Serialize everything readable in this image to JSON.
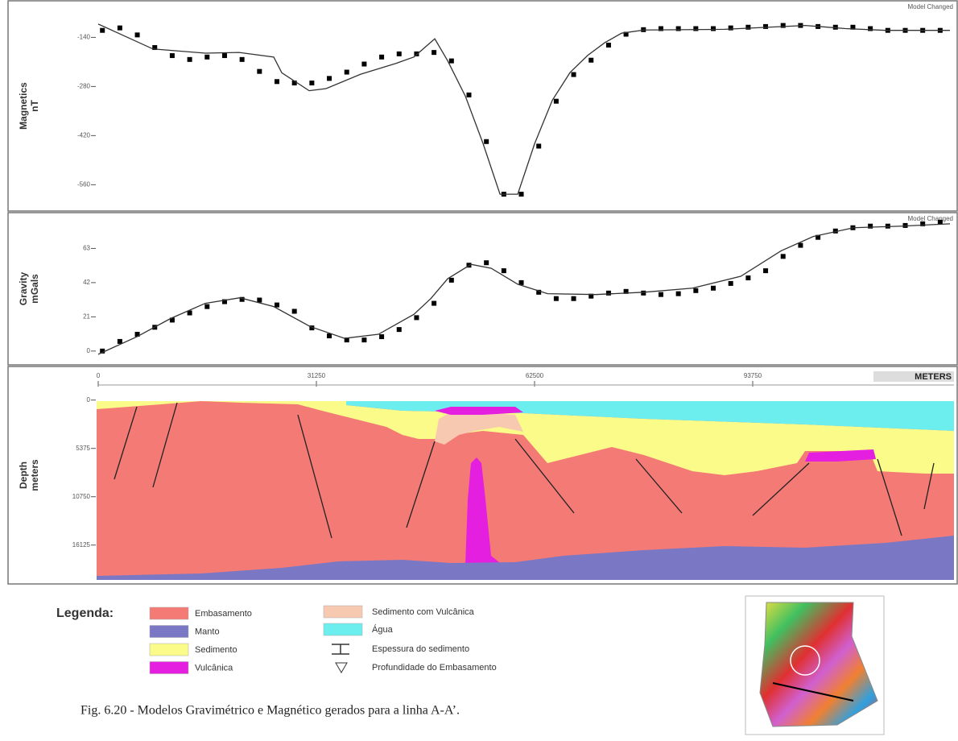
{
  "chart_data": [
    {
      "type": "line",
      "ylabel": [
        "Magnetics",
        "nT"
      ],
      "annotation": "Model Changed",
      "xlim": [
        0,
        122000
      ],
      "ylim": [
        -612,
        -61
      ],
      "yticks": [
        -140,
        -280,
        -420,
        -560
      ],
      "series": [
        {
          "type": "scatter",
          "color": "#000000",
          "x": [
            600,
            3100,
            5600,
            8100,
            10600,
            13100,
            15600,
            18100,
            20600,
            23100,
            25600,
            28100,
            30600,
            33100,
            35600,
            38100,
            40600,
            43100,
            45600,
            48100,
            50600,
            53100,
            55600,
            58100,
            60600,
            63100,
            65600,
            68100,
            70600,
            73100,
            75600,
            78100,
            80600,
            83100,
            85600,
            88100,
            90600,
            93100,
            95600,
            98100,
            100600,
            103100,
            105600,
            108100,
            110600,
            113100,
            115600,
            118100,
            120600
          ],
          "values": [
            -120,
            -113,
            -133,
            -169,
            -192,
            -203,
            -196,
            -192,
            -203,
            -237,
            -266,
            -270,
            -270,
            -257,
            -239,
            -216,
            -196,
            -187,
            -187,
            -183,
            -207,
            -304,
            -437,
            -587,
            -587,
            -450,
            -322,
            -246,
            -205,
            -162,
            -131,
            -118,
            -115,
            -115,
            -115,
            -115,
            -113,
            -111,
            -109,
            -106,
            -106,
            -109,
            -111,
            -111,
            -115,
            -120,
            -120,
            -120,
            -120
          ]
        },
        {
          "type": "line",
          "color": "#333333",
          "x": [
            0,
            2880,
            7840,
            15340,
            20180,
            25140,
            26300,
            30220,
            32640,
            37600,
            42680,
            45210,
            48210,
            50060,
            52600,
            55130,
            57550,
            60090,
            62510,
            65050,
            67590,
            70130,
            72560,
            74970,
            78200,
            89730,
            101270,
            107040,
            112800,
            122000
          ],
          "values": [
            -102,
            -128,
            -173,
            -185,
            -183,
            -196,
            -241,
            -292,
            -286,
            -245,
            -214,
            -196,
            -144,
            -207,
            -308,
            -443,
            -587,
            -587,
            -443,
            -319,
            -240,
            -191,
            -155,
            -128,
            -119,
            -117,
            -106,
            -115,
            -120,
            -120
          ]
        }
      ]
    },
    {
      "type": "line",
      "ylabel": [
        "Gravity",
        "mGals"
      ],
      "annotation": "Model Changed",
      "xlim": [
        0,
        122000
      ],
      "ylim": [
        -7,
        82
      ],
      "yticks": [
        0,
        21,
        42,
        63
      ],
      "series": [
        {
          "type": "scatter",
          "color": "#000000",
          "x": [
            600,
            3100,
            5600,
            8100,
            10600,
            13100,
            15600,
            18100,
            20600,
            23100,
            25600,
            28100,
            30600,
            33100,
            35600,
            38100,
            40600,
            43100,
            45600,
            48100,
            50600,
            53100,
            55600,
            58100,
            60600,
            63100,
            65600,
            68100,
            70600,
            73100,
            75600,
            78100,
            80600,
            83100,
            85600,
            88100,
            90600,
            93100,
            95600,
            98100,
            100600,
            103100,
            105600,
            108100,
            110600,
            113100,
            115600,
            118100,
            120600
          ],
          "values": [
            0,
            5.9,
            10.3,
            14.6,
            19.0,
            23.4,
            27.3,
            30.3,
            31.7,
            31.3,
            28.3,
            24.4,
            14.2,
            9.3,
            6.8,
            6.8,
            8.8,
            13.2,
            20.5,
            29.3,
            43.5,
            52.7,
            54.2,
            49.3,
            42.0,
            36.1,
            32.2,
            32.2,
            33.7,
            35.6,
            36.6,
            35.6,
            34.7,
            35.2,
            37.1,
            38.6,
            41.5,
            44.9,
            49.3,
            58.1,
            64.9,
            69.8,
            73.7,
            75.7,
            76.7,
            76.7,
            77.1,
            78.1,
            79.1
          ]
        },
        {
          "type": "line",
          "color": "#333333",
          "x": [
            0,
            5540,
            10380,
            15340,
            20300,
            25140,
            30330,
            35290,
            40140,
            45210,
            47640,
            50060,
            53400,
            56290,
            60090,
            64360,
            71280,
            78200,
            85120,
            92040,
            97810,
            102420,
            108190,
            115110,
            122000
          ],
          "values": [
            -2.0,
            8.8,
            20.0,
            29.3,
            32.7,
            27.3,
            15.1,
            7.8,
            10.3,
            22.5,
            32.2,
            44.4,
            53.2,
            50.8,
            41.0,
            35.2,
            34.7,
            36.1,
            38.6,
            45.9,
            61.5,
            70.3,
            75.7,
            76.7,
            78.1
          ]
        }
      ]
    },
    {
      "type": "section",
      "ylabel": [
        "Depth",
        "meters"
      ],
      "xlabel": "METERS",
      "xlim": [
        0,
        122000
      ],
      "xticks": [
        0,
        31250,
        62500,
        93750
      ],
      "ylim": [
        -600,
        20000
      ],
      "yticks": [
        0,
        5375,
        10750,
        16125
      ],
      "y_inverted": true
    }
  ],
  "legend": {
    "title": "Legenda:",
    "swatches": [
      {
        "label": "Embasamento",
        "color": "#f47a76"
      },
      {
        "label": "Manto",
        "color": "#7a78c4"
      },
      {
        "label": "Sedimento",
        "color": "#fbfb8a"
      },
      {
        "label": "Vulcânica",
        "color": "#e41fe0"
      },
      {
        "label": "Sedimento com Vulcânica",
        "color": "#f7c9b0"
      },
      {
        "label": "Água",
        "color": "#6ceeee"
      }
    ],
    "symbols": [
      "Espessura do sedimento",
      "Profundidade do Embasamento"
    ]
  },
  "caption": "Fig. 6.20 - Modelos Gravimétrico e Magnético gerados para a linha A-A’."
}
